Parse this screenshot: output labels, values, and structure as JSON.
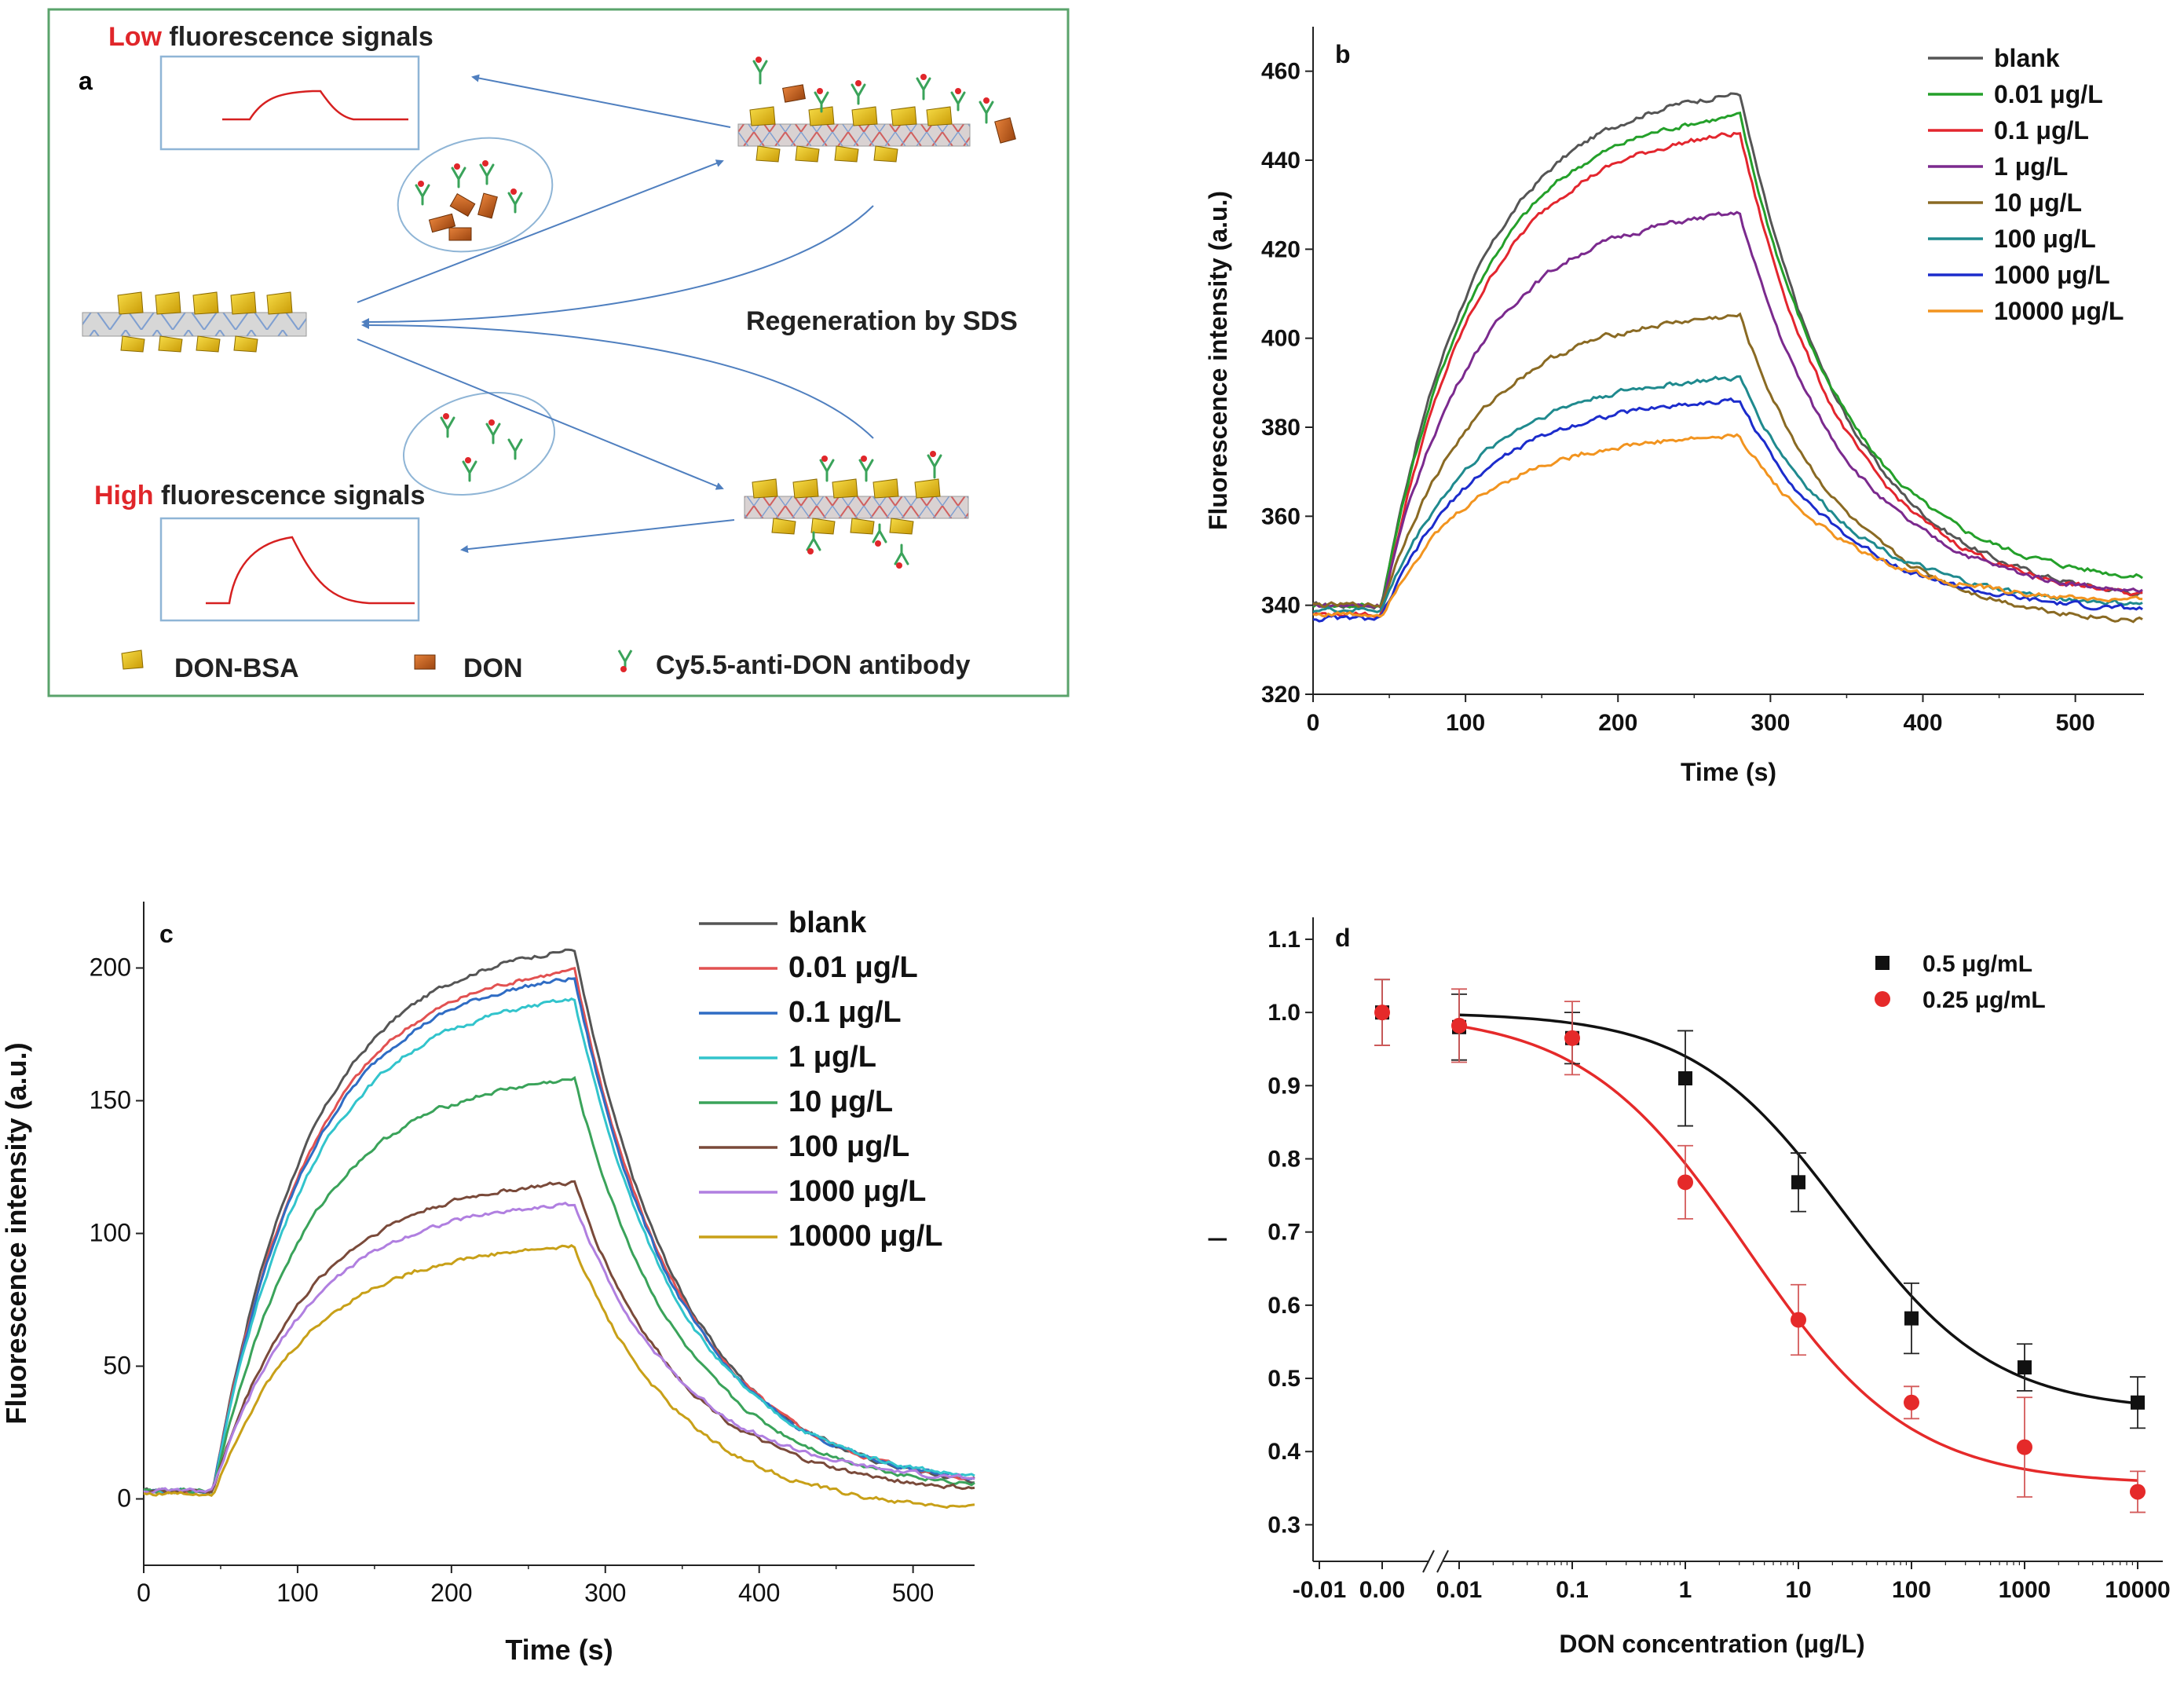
{
  "panel_a": {
    "label": "a",
    "low_word": "Low",
    "low_rest": " fluorescence signals",
    "high_word": "High",
    "high_rest": " fluorescence signals",
    "regeneration": "Regeneration by SDS",
    "legend": [
      "DON-BSA",
      "DON",
      "Cy5.5-anti-DON antibody"
    ],
    "colors": {
      "frame": "#5aa36b",
      "accent": "#e0262a",
      "arrow": "#4f7fbf",
      "box": "#8fb5d6"
    }
  },
  "chart_data": [
    {
      "id": "b",
      "type": "line",
      "panel_label": "b",
      "title": "",
      "xlabel": "Time (s)",
      "ylabel": "Fluorescence intensity (a.u.)",
      "xlim": [
        0,
        545
      ],
      "ylim": [
        320,
        470
      ],
      "xticks": [
        0,
        100,
        200,
        300,
        400,
        500
      ],
      "yticks": [
        320,
        340,
        360,
        380,
        400,
        420,
        440,
        460
      ],
      "legend_position": "top-right",
      "series": [
        {
          "name": "blank",
          "color": "#555555",
          "baseline": 340,
          "plateau": 455,
          "end": 340
        },
        {
          "name": "0.01 μg/L",
          "color": "#24a02a",
          "baseline": 340,
          "plateau": 450,
          "end": 344
        },
        {
          "name": "0.1 μg/L",
          "color": "#e3262e",
          "baseline": 338,
          "plateau": 446,
          "end": 340
        },
        {
          "name": "1 μg/L",
          "color": "#7b2a8e",
          "baseline": 340,
          "plateau": 428,
          "end": 341
        },
        {
          "name": "10 μg/L",
          "color": "#8a6a23",
          "baseline": 340,
          "plateau": 405,
          "end": 335
        },
        {
          "name": "100 μg/L",
          "color": "#1f8a8e",
          "baseline": 339,
          "plateau": 391,
          "end": 339
        },
        {
          "name": "1000 μg/L",
          "color": "#1c2ccc",
          "baseline": 337,
          "plateau": 386,
          "end": 338
        },
        {
          "name": "10000 μg/L",
          "color": "#f2941f",
          "baseline": 338,
          "plateau": 378,
          "end": 340
        }
      ]
    },
    {
      "id": "c",
      "type": "line",
      "panel_label": "c",
      "title": "",
      "xlabel": "Time (s)",
      "ylabel": "Fluorescence intensity (a.u.)",
      "xlim": [
        0,
        540
      ],
      "ylim": [
        -25,
        225
      ],
      "xticks": [
        0,
        100,
        200,
        300,
        400,
        500
      ],
      "yticks": [
        0,
        50,
        100,
        150,
        200
      ],
      "legend_position": "top-right",
      "series": [
        {
          "name": "blank",
          "color": "#555555",
          "baseline": 3,
          "plateau": 207,
          "end": 2
        },
        {
          "name": "0.01 μg/L",
          "color": "#e25252",
          "baseline": 3,
          "plateau": 199,
          "end": 3
        },
        {
          "name": "0.1 μg/L",
          "color": "#2f6cc4",
          "baseline": 3,
          "plateau": 196,
          "end": 3
        },
        {
          "name": "1 μg/L",
          "color": "#32c4cc",
          "baseline": 3,
          "plateau": 188,
          "end": 4
        },
        {
          "name": "10 μg/L",
          "color": "#3aa35a",
          "baseline": 3,
          "plateau": 158,
          "end": 2
        },
        {
          "name": "100 μg/L",
          "color": "#7a4a3a",
          "baseline": 3,
          "plateau": 119,
          "end": 1
        },
        {
          "name": "1000 μg/L",
          "color": "#b07fe0",
          "baseline": 3,
          "plateau": 111,
          "end": 5
        },
        {
          "name": "10000 μg/L",
          "color": "#c8a018",
          "baseline": 2,
          "plateau": 95,
          "end": -6
        }
      ]
    },
    {
      "id": "d",
      "type": "scatter",
      "panel_label": "d",
      "title": "",
      "xlabel": "DON concentration (μg/L)",
      "ylabel": "I",
      "x_scale": "log with broken axis",
      "ylim": [
        0.25,
        1.13
      ],
      "yticks": [
        "0.3",
        "0.4",
        "0.5",
        "0.6",
        "0.7",
        "0.8",
        "0.9",
        "1.0",
        "1.1"
      ],
      "xtick_labels": [
        "-0.01",
        "0.00",
        "0.01",
        "0.1",
        "1",
        "10",
        "100",
        "1000",
        "10000"
      ],
      "legend_position": "top-right",
      "series": [
        {
          "name": "0.5 μg/mL",
          "color": "#111111",
          "marker": "square",
          "x": [
            0,
            0.01,
            0.1,
            1,
            10,
            100,
            1000,
            10000
          ],
          "y": [
            1.0,
            0.98,
            0.965,
            0.91,
            0.768,
            0.582,
            0.515,
            0.467
          ],
          "err": [
            0.045,
            0.045,
            0.035,
            0.065,
            0.04,
            0.048,
            0.032,
            0.035
          ],
          "fit": {
            "model": "four-parameter logistic",
            "top": 1.0,
            "bottom": 0.455,
            "ic50": 25,
            "hill": 0.65
          }
        },
        {
          "name": "0.25 μg/mL",
          "color": "#e52a2a",
          "marker": "circle",
          "x": [
            0,
            0.01,
            0.1,
            1,
            10,
            100,
            1000,
            10000
          ],
          "y": [
            1.0,
            0.982,
            0.965,
            0.768,
            0.58,
            0.467,
            0.406,
            0.345
          ],
          "err": [
            0.045,
            0.05,
            0.05,
            0.05,
            0.048,
            0.022,
            0.068,
            0.028
          ],
          "fit": {
            "model": "four-parameter logistic",
            "top": 1.0,
            "bottom": 0.355,
            "ic50": 3.5,
            "hill": 0.6
          }
        }
      ]
    }
  ]
}
